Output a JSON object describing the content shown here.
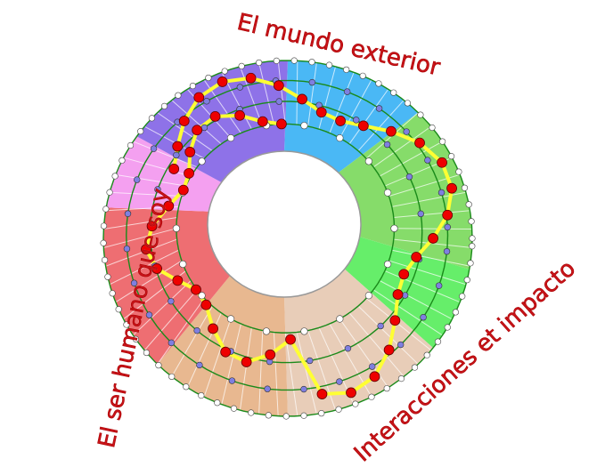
{
  "labels": {
    "top": "El mundo exterior",
    "left": "El ser humano que soy",
    "right": "Interacciones et impacto"
  },
  "sectors": [
    {
      "color": "#4ab8f5"
    },
    {
      "color": "#86dc6a"
    },
    {
      "color": "#66ee6a"
    },
    {
      "color": "#e8cdb8"
    },
    {
      "color": "#e8b890"
    },
    {
      "color": "#ee6e72"
    },
    {
      "color": "#f4a0f0"
    },
    {
      "color": "#8e72e8"
    }
  ],
  "colors": {
    "ring_line": "#1a8a1a",
    "path": "#ffff33",
    "highlight_node": "#ee0000",
    "inner_node": "#7f7fe0",
    "outer_node": "#ffffff",
    "label": "#c8141a"
  }
}
